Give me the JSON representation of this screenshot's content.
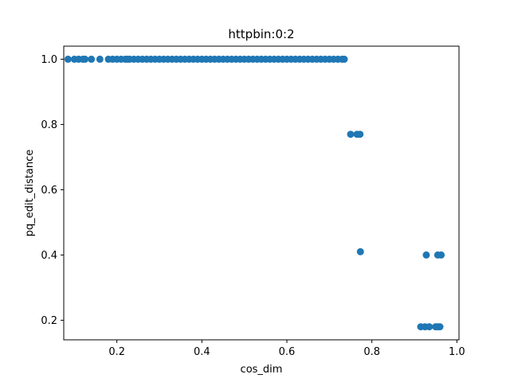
{
  "chart_data": {
    "type": "scatter",
    "title": "httpbin:0:2",
    "xlabel": "cos_dim",
    "ylabel": "pq_edit_distance",
    "xlim": [
      0.075,
      1.005
    ],
    "ylim": [
      0.14,
      1.04
    ],
    "xticks": [
      0.2,
      0.4,
      0.6,
      0.8,
      1.0
    ],
    "xtick_labels": [
      "0.2",
      "0.4",
      "0.6",
      "0.8",
      "1.0"
    ],
    "yticks": [
      0.2,
      0.4,
      0.6,
      0.8,
      1.0
    ],
    "ytick_labels": [
      "0.2",
      "0.4",
      "0.6",
      "0.8",
      "1.0"
    ],
    "grid": false,
    "marker_color": "#1f77b4",
    "series": [
      {
        "points": [
          {
            "x": 0.085,
            "y": 1.0
          },
          {
            "x": 0.1,
            "y": 1.0
          },
          {
            "x": 0.11,
            "y": 1.0
          },
          {
            "x": 0.12,
            "y": 1.0
          },
          {
            "x": 0.125,
            "y": 1.0
          },
          {
            "x": 0.14,
            "y": 1.0
          },
          {
            "x": 0.16,
            "y": 1.0
          },
          {
            "x": 0.18,
            "y": 1.0
          },
          {
            "x": 0.19,
            "y": 1.0
          },
          {
            "x": 0.2,
            "y": 1.0
          },
          {
            "x": 0.21,
            "y": 1.0
          },
          {
            "x": 0.22,
            "y": 1.0
          },
          {
            "x": 0.225,
            "y": 1.0
          },
          {
            "x": 0.23,
            "y": 1.0
          },
          {
            "x": 0.24,
            "y": 1.0
          },
          {
            "x": 0.25,
            "y": 1.0
          },
          {
            "x": 0.26,
            "y": 1.0
          },
          {
            "x": 0.27,
            "y": 1.0
          },
          {
            "x": 0.28,
            "y": 1.0
          },
          {
            "x": 0.29,
            "y": 1.0
          },
          {
            "x": 0.3,
            "y": 1.0
          },
          {
            "x": 0.31,
            "y": 1.0
          },
          {
            "x": 0.32,
            "y": 1.0
          },
          {
            "x": 0.33,
            "y": 1.0
          },
          {
            "x": 0.34,
            "y": 1.0
          },
          {
            "x": 0.35,
            "y": 1.0
          },
          {
            "x": 0.36,
            "y": 1.0
          },
          {
            "x": 0.37,
            "y": 1.0
          },
          {
            "x": 0.38,
            "y": 1.0
          },
          {
            "x": 0.39,
            "y": 1.0
          },
          {
            "x": 0.4,
            "y": 1.0
          },
          {
            "x": 0.41,
            "y": 1.0
          },
          {
            "x": 0.42,
            "y": 1.0
          },
          {
            "x": 0.43,
            "y": 1.0
          },
          {
            "x": 0.44,
            "y": 1.0
          },
          {
            "x": 0.45,
            "y": 1.0
          },
          {
            "x": 0.46,
            "y": 1.0
          },
          {
            "x": 0.47,
            "y": 1.0
          },
          {
            "x": 0.48,
            "y": 1.0
          },
          {
            "x": 0.49,
            "y": 1.0
          },
          {
            "x": 0.5,
            "y": 1.0
          },
          {
            "x": 0.51,
            "y": 1.0
          },
          {
            "x": 0.52,
            "y": 1.0
          },
          {
            "x": 0.53,
            "y": 1.0
          },
          {
            "x": 0.54,
            "y": 1.0
          },
          {
            "x": 0.55,
            "y": 1.0
          },
          {
            "x": 0.56,
            "y": 1.0
          },
          {
            "x": 0.57,
            "y": 1.0
          },
          {
            "x": 0.58,
            "y": 1.0
          },
          {
            "x": 0.59,
            "y": 1.0
          },
          {
            "x": 0.6,
            "y": 1.0
          },
          {
            "x": 0.61,
            "y": 1.0
          },
          {
            "x": 0.62,
            "y": 1.0
          },
          {
            "x": 0.63,
            "y": 1.0
          },
          {
            "x": 0.64,
            "y": 1.0
          },
          {
            "x": 0.65,
            "y": 1.0
          },
          {
            "x": 0.66,
            "y": 1.0
          },
          {
            "x": 0.67,
            "y": 1.0
          },
          {
            "x": 0.68,
            "y": 1.0
          },
          {
            "x": 0.69,
            "y": 1.0
          },
          {
            "x": 0.7,
            "y": 1.0
          },
          {
            "x": 0.71,
            "y": 1.0
          },
          {
            "x": 0.72,
            "y": 1.0
          },
          {
            "x": 0.73,
            "y": 1.0
          },
          {
            "x": 0.735,
            "y": 1.0
          },
          {
            "x": 0.75,
            "y": 0.77
          },
          {
            "x": 0.765,
            "y": 0.77
          },
          {
            "x": 0.772,
            "y": 0.77
          },
          {
            "x": 0.773,
            "y": 0.41
          },
          {
            "x": 0.915,
            "y": 0.18
          },
          {
            "x": 0.925,
            "y": 0.18
          },
          {
            "x": 0.935,
            "y": 0.18
          },
          {
            "x": 0.95,
            "y": 0.18
          },
          {
            "x": 0.955,
            "y": 0.18
          },
          {
            "x": 0.96,
            "y": 0.18
          },
          {
            "x": 0.928,
            "y": 0.4
          },
          {
            "x": 0.955,
            "y": 0.4
          },
          {
            "x": 0.963,
            "y": 0.4
          }
        ]
      }
    ]
  }
}
